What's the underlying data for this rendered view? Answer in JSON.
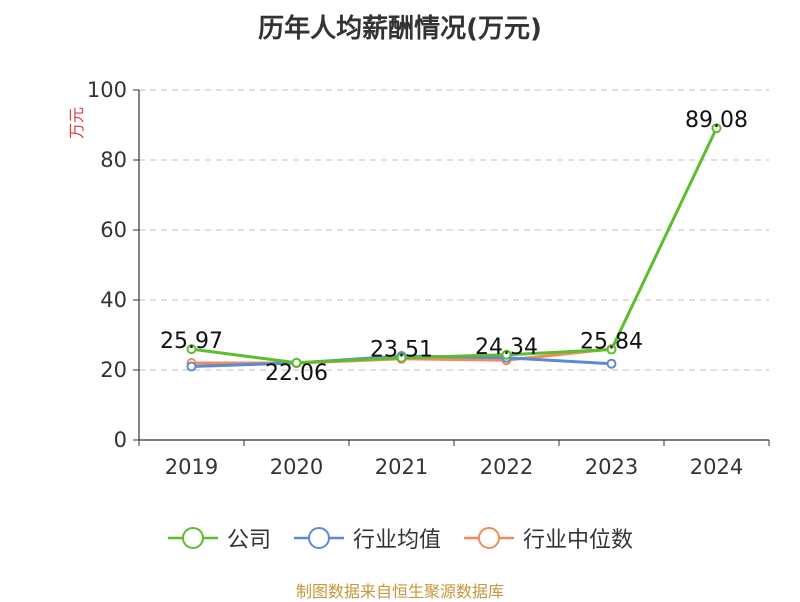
{
  "chart_data": {
    "type": "line",
    "title": "历年人均薪酬情况(万元)",
    "ylabel": "万元",
    "xlabel": "",
    "categories": [
      "2019",
      "2020",
      "2021",
      "2022",
      "2023",
      "2024"
    ],
    "ylim": [
      0,
      100
    ],
    "yticks": [
      0,
      20,
      40,
      60,
      80,
      100
    ],
    "grid": true,
    "legend_position": "bottom",
    "series": [
      {
        "name": "公司",
        "color": "#5cbd2e",
        "values": [
          25.97,
          22.06,
          23.51,
          24.34,
          25.84,
          89.08
        ],
        "labels": [
          "25.97",
          "22.06",
          "23.51",
          "24.34",
          "25.84",
          "89.08"
        ]
      },
      {
        "name": "行业均值",
        "color": "#5b8ad6",
        "values": [
          21.0,
          22.0,
          24.0,
          23.5,
          21.8,
          null
        ]
      },
      {
        "name": "行业中位数",
        "color": "#f28b5b",
        "values": [
          22.0,
          22.0,
          23.2,
          22.8,
          26.0,
          null
        ]
      }
    ]
  },
  "footer": {
    "source": "制图数据来自恒生聚源数据库",
    "source_color": "#c8963c"
  },
  "colors": {
    "axis": "#333333",
    "grid": "#cccccc",
    "ylabel": "#e03c3c"
  }
}
